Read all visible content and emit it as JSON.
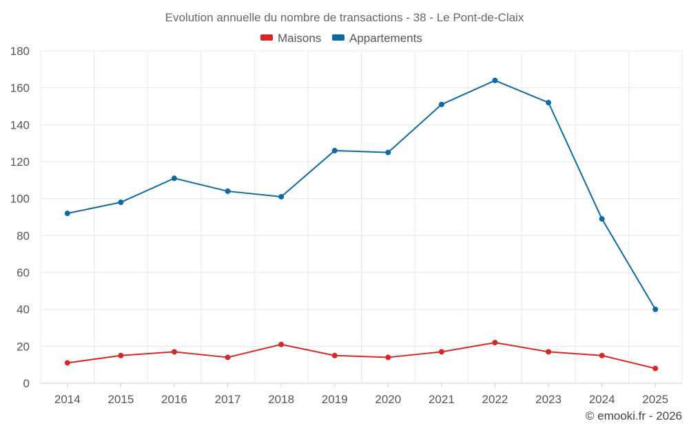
{
  "chart_data": {
    "type": "line",
    "title": "Evolution annuelle du nombre de transactions - 38 - Le Pont-de-Claix",
    "categories": [
      "2014",
      "2015",
      "2016",
      "2017",
      "2018",
      "2019",
      "2020",
      "2021",
      "2022",
      "2023",
      "2024",
      "2025"
    ],
    "series": [
      {
        "name": "Maisons",
        "color": "#d62728",
        "values": [
          11,
          15,
          17,
          14,
          21,
          15,
          14,
          17,
          22,
          17,
          15,
          8
        ]
      },
      {
        "name": "Appartements",
        "color": "#0b6aa2",
        "values": [
          92,
          98,
          111,
          104,
          101,
          126,
          125,
          151,
          164,
          152,
          89,
          40
        ]
      }
    ],
    "ylim": [
      0,
      180
    ],
    "yticks": [
      0,
      20,
      40,
      60,
      80,
      100,
      120,
      140,
      160,
      180
    ],
    "xlabel": "",
    "ylabel": "",
    "grid": true,
    "legend_position": "top-center"
  },
  "credit": "© emooki.fr - 2026"
}
